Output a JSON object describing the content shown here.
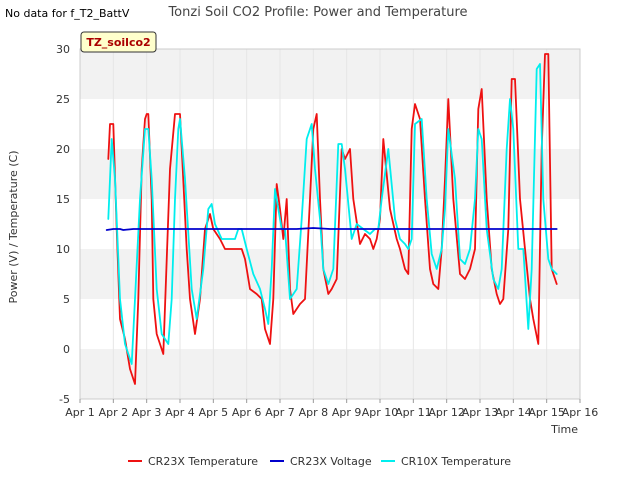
{
  "header": {
    "no_data_note": "No data for f_T2_BattV",
    "site_badge": "TZ_soilco2"
  },
  "chart_data": {
    "type": "line",
    "title": "Tonzi Soil CO2 Profile: Power and Temperature",
    "xlabel": "Time",
    "ylabel": "Power (V) / Temperature (C)",
    "xlim": [
      1,
      16
    ],
    "ylim": [
      -5,
      30
    ],
    "x_ticks": [
      1,
      2,
      3,
      4,
      5,
      6,
      7,
      8,
      9,
      10,
      11,
      12,
      13,
      14,
      15,
      16
    ],
    "x_tick_labels": [
      "Apr 1",
      "Apr 2",
      "Apr 3",
      "Apr 4",
      "Apr 5",
      "Apr 6",
      "Apr 7",
      "Apr 8",
      "Apr 9",
      "Apr 10",
      "Apr 11",
      "Apr 12",
      "Apr 13",
      "Apr 14",
      "Apr 15",
      "Apr 16"
    ],
    "y_ticks": [
      -5,
      0,
      5,
      10,
      15,
      20,
      25,
      30
    ],
    "grid": "horizontal bands",
    "legend_position": "bottom",
    "series": [
      {
        "name": "CR23X Temperature",
        "color": "#ee1111",
        "x": [
          1.85,
          1.9,
          2.0,
          2.1,
          2.2,
          2.35,
          2.5,
          2.65,
          2.75,
          2.85,
          2.95,
          3.0,
          3.05,
          3.15,
          3.2,
          3.3,
          3.5,
          3.7,
          3.85,
          4.0,
          4.2,
          4.3,
          4.45,
          4.6,
          4.75,
          4.9,
          5.0,
          5.2,
          5.35,
          5.5,
          5.7,
          5.85,
          5.95,
          6.0,
          6.1,
          6.3,
          6.45,
          6.55,
          6.7,
          6.8,
          6.9,
          7.0,
          7.1,
          7.2,
          7.3,
          7.4,
          7.6,
          7.75,
          7.9,
          8.0,
          8.1,
          8.2,
          8.3,
          8.45,
          8.55,
          8.7,
          8.85,
          8.95,
          9.1,
          9.2,
          9.4,
          9.55,
          9.7,
          9.8,
          9.9,
          10.0,
          10.1,
          10.3,
          10.5,
          10.6,
          10.75,
          10.85,
          10.95,
          11.05,
          11.2,
          11.35,
          11.5,
          11.6,
          11.75,
          11.85,
          11.95,
          12.05,
          12.2,
          12.4,
          12.55,
          12.7,
          12.85,
          12.95,
          13.05,
          13.2,
          13.35,
          13.5,
          13.6,
          13.7,
          13.85,
          13.95,
          14.05,
          14.2,
          14.35,
          14.5,
          14.6,
          14.75,
          14.85,
          14.95,
          15.05,
          15.15,
          15.3
        ],
        "values": [
          19,
          22.5,
          22.5,
          12,
          3,
          1,
          -2,
          -3.5,
          5,
          18,
          23,
          23.5,
          23.5,
          15,
          5,
          1.5,
          -0.5,
          18,
          23.5,
          23.5,
          10,
          5,
          1.5,
          5,
          12,
          13.5,
          12,
          11,
          10,
          10,
          10,
          10,
          9,
          8,
          6,
          5.5,
          5,
          2,
          0.5,
          5,
          16.5,
          14,
          11,
          15,
          6,
          3.5,
          4.5,
          5,
          15,
          22,
          23.5,
          15,
          8,
          5.5,
          6,
          7,
          20,
          19,
          20,
          15,
          10.5,
          11.5,
          11,
          10,
          11,
          13,
          21,
          14,
          11,
          10,
          8,
          7.5,
          22,
          24.5,
          23,
          15,
          8,
          6.5,
          6,
          10,
          17,
          25,
          15,
          7.5,
          7,
          8,
          10,
          24,
          26,
          15,
          8,
          5.5,
          4.5,
          5,
          12,
          27,
          27,
          15,
          10,
          5,
          3,
          0.5,
          20,
          29.5,
          29.5,
          8,
          6.5
        ]
      },
      {
        "name": "CR23X Voltage",
        "color": "#0000cc",
        "x": [
          1.8,
          2.0,
          2.2,
          2.3,
          2.6,
          2.8,
          3.0,
          3.5,
          4.0,
          4.5,
          5.0,
          5.5,
          6.0,
          6.5,
          7.0,
          7.5,
          8.0,
          8.5,
          9.0,
          9.5,
          10.0,
          10.5,
          11.0,
          11.5,
          12.0,
          12.5,
          13.0,
          13.5,
          14.0,
          14.5,
          15.0,
          15.3
        ],
        "values": [
          11.9,
          12.0,
          12.0,
          11.9,
          12.0,
          12.0,
          12.0,
          12.0,
          12.0,
          12.0,
          12.0,
          12.0,
          12.0,
          12.0,
          12.0,
          12.0,
          12.1,
          12.0,
          12.0,
          12.0,
          12.0,
          12.0,
          12.0,
          12.0,
          12.0,
          12.0,
          12.0,
          12.0,
          12.0,
          12.0,
          12.0,
          12.0
        ]
      },
      {
        "name": "CR10X Temperature",
        "color": "#00eeee",
        "x": [
          1.85,
          1.95,
          2.05,
          2.2,
          2.35,
          2.55,
          2.65,
          2.8,
          2.95,
          3.05,
          3.15,
          3.3,
          3.45,
          3.65,
          3.75,
          3.85,
          3.95,
          4.0,
          4.15,
          4.35,
          4.5,
          4.7,
          4.85,
          4.95,
          5.05,
          5.25,
          5.5,
          5.65,
          5.75,
          5.85,
          6.0,
          6.2,
          6.4,
          6.55,
          6.65,
          6.75,
          6.85,
          6.95,
          7.05,
          7.15,
          7.3,
          7.5,
          7.65,
          7.8,
          7.95,
          8.05,
          8.2,
          8.3,
          8.45,
          8.6,
          8.75,
          8.85,
          8.95,
          9.15,
          9.3,
          9.5,
          9.7,
          9.85,
          9.95,
          10.05,
          10.25,
          10.45,
          10.6,
          10.75,
          10.85,
          10.95,
          11.05,
          11.25,
          11.4,
          11.55,
          11.7,
          11.85,
          11.95,
          12.05,
          12.25,
          12.4,
          12.55,
          12.7,
          12.85,
          12.95,
          13.05,
          13.2,
          13.4,
          13.55,
          13.65,
          13.8,
          13.9,
          14.0,
          14.15,
          14.3,
          14.45,
          14.55,
          14.7,
          14.8,
          14.9,
          15.05,
          15.15,
          15.3
        ],
        "values": [
          13,
          21,
          17,
          5,
          0.5,
          -1.5,
          5,
          15,
          22,
          22,
          17,
          6,
          1.5,
          0.5,
          5,
          15,
          22,
          23,
          17,
          6,
          3,
          8,
          14,
          14.5,
          12.5,
          11,
          11,
          11,
          12,
          12,
          10,
          7.5,
          6,
          4,
          2.5,
          8,
          16,
          14,
          12,
          12,
          5,
          6,
          13,
          21,
          22.5,
          18,
          13,
          8,
          6.5,
          8,
          20.5,
          20.5,
          18,
          11,
          12.5,
          12,
          11.5,
          12,
          12,
          15,
          20,
          13,
          11,
          10.5,
          10,
          11,
          22.5,
          23,
          15,
          9.5,
          8,
          10,
          14,
          22,
          17,
          9,
          8.5,
          10,
          15,
          22,
          21,
          12,
          7,
          6,
          8,
          20,
          25,
          22,
          10,
          10,
          2,
          8,
          28,
          28.5,
          15,
          9,
          8,
          7.5
        ]
      }
    ]
  }
}
